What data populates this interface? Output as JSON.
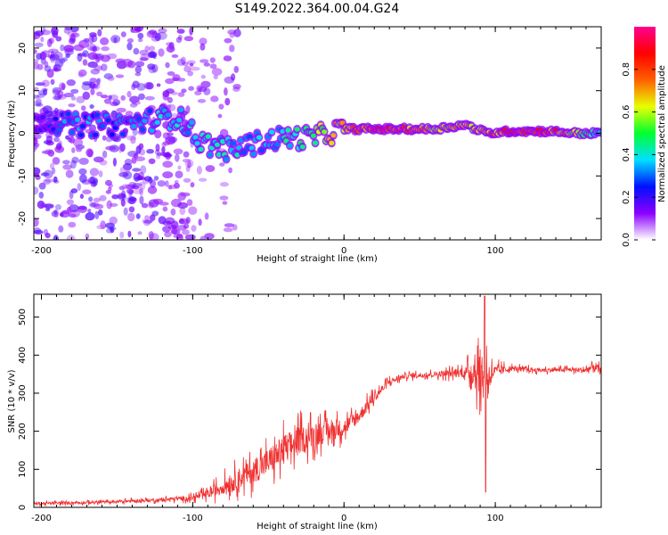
{
  "title": "S149.2022.364.00.04.G24",
  "chart_data": [
    {
      "type": "heatmap",
      "title": "",
      "xlabel": "Height of straight line (km)",
      "ylabel": "Frequency (Hz)",
      "xlim": [
        -205,
        170
      ],
      "ylim": [
        -25,
        25
      ],
      "xticks": [
        -200,
        -100,
        0,
        100
      ],
      "yticks": [
        -20,
        -10,
        0,
        10,
        20
      ],
      "colorbar": {
        "label": "Normalized spectral amplitude",
        "ticks": [
          0.0,
          0.2,
          0.4,
          0.6,
          0.8
        ],
        "tick_labels": [
          "0.0",
          "0.2",
          "0.4",
          "0.6",
          "0.8"
        ],
        "range": [
          0,
          1
        ],
        "colormap": [
          "#ffffff",
          "#8a00ff",
          "#0010ff",
          "#00e0ff",
          "#00ff30",
          "#e8ff00",
          "#ff6000",
          "#ff0000",
          "#ff0090"
        ]
      },
      "ridge": [
        {
          "x": -200,
          "freq": 3,
          "amp": 0.2
        },
        {
          "x": -180,
          "freq": 2,
          "amp": 0.35
        },
        {
          "x": -150,
          "freq": 2,
          "amp": 0.3
        },
        {
          "x": -130,
          "freq": 3,
          "amp": 0.35
        },
        {
          "x": -110,
          "freq": 4,
          "amp": 0.4
        },
        {
          "x": -95,
          "freq": -2,
          "amp": 0.4
        },
        {
          "x": -75,
          "freq": -4,
          "amp": 0.4
        },
        {
          "x": -55,
          "freq": -2,
          "amp": 0.35
        },
        {
          "x": -40,
          "freq": -1,
          "amp": 0.4
        },
        {
          "x": -20,
          "freq": -1,
          "amp": 0.55
        },
        {
          "x": 0,
          "freq": 1,
          "amp": 0.75
        },
        {
          "x": 20,
          "freq": 1,
          "amp": 0.95
        },
        {
          "x": 40,
          "freq": 1,
          "amp": 0.9
        },
        {
          "x": 60,
          "freq": 1,
          "amp": 0.7
        },
        {
          "x": 80,
          "freq": 2,
          "amp": 0.7
        },
        {
          "x": 95,
          "freq": 0,
          "amp": 0.75
        },
        {
          "x": 110,
          "freq": 0.5,
          "amp": 0.95
        },
        {
          "x": 135,
          "freq": 0.5,
          "amp": 0.9
        },
        {
          "x": 155,
          "freq": 0,
          "amp": 0.6
        },
        {
          "x": 170,
          "freq": 0,
          "amp": 0.4
        }
      ]
    },
    {
      "type": "line",
      "title": "",
      "xlabel": "Height of straight line (km)",
      "ylabel": "SNR (10 * v/v)",
      "xlim": [
        -205,
        170
      ],
      "ylim": [
        0,
        560
      ],
      "xticks": [
        -200,
        -100,
        0,
        100
      ],
      "yticks": [
        0,
        100,
        200,
        300,
        400,
        500
      ],
      "color": "#f03030",
      "series": [
        {
          "x": [
            -205,
            -180,
            -150,
            -120,
            -100,
            -90,
            -80,
            -70,
            -60,
            -50,
            -40,
            -30,
            -20,
            -10,
            0,
            10,
            20,
            30,
            40,
            60,
            80,
            88,
            92,
            95,
            98,
            110,
            130,
            150,
            160,
            165,
            170
          ],
          "values": [
            10,
            12,
            15,
            20,
            25,
            35,
            55,
            75,
            95,
            120,
            150,
            175,
            190,
            200,
            210,
            240,
            290,
            330,
            345,
            350,
            355,
            360,
            350,
            345,
            355,
            365,
            360,
            362,
            360,
            370,
            358
          ],
          "noise": [
            8,
            8,
            8,
            10,
            15,
            25,
            45,
            60,
            70,
            80,
            90,
            80,
            70,
            60,
            50,
            40,
            30,
            20,
            15,
            15,
            30,
            110,
            160,
            100,
            40,
            15,
            12,
            12,
            20,
            40,
            15
          ]
        }
      ]
    }
  ]
}
